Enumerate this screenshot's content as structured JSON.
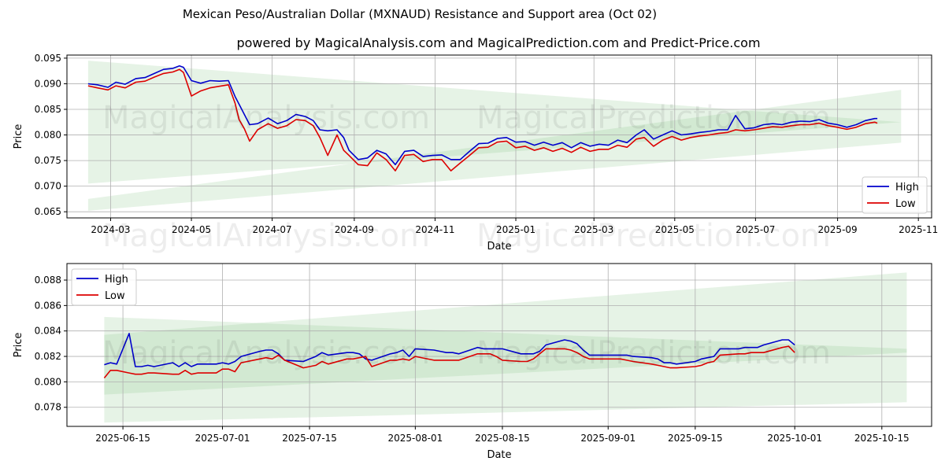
{
  "title": "Mexican Peso/Australian Dollar (MXNAUD) Resistance and Support area (Oct 02)",
  "subtitle": "powered by MagicalAnalysis.com and MagicalPrediction.com and Predict-Price.com",
  "watermarks": [
    "MagicalAnalysis.com",
    "MagicalPrediction.com"
  ],
  "colors": {
    "high": "#0000cc",
    "low": "#dd0000",
    "band": "#8fc98f",
    "grid": "#b0b0b0"
  },
  "chart_data": [
    {
      "type": "line",
      "xlabel": "Date",
      "ylabel": "Price",
      "grid": true,
      "legend": "bottom-right",
      "xlim": [
        "2024-01-28",
        "2025-11-11"
      ],
      "ylim": [
        0.0638,
        0.0956
      ],
      "x_ticks": [
        "2024-03-01",
        "2024-05-01",
        "2024-07-01",
        "2024-09-01",
        "2024-11-01",
        "2025-01-01",
        "2025-03-01",
        "2025-05-01",
        "2025-07-01",
        "2025-09-01",
        "2025-11-01"
      ],
      "x_tick_labels": [
        "2024-03",
        "2024-05",
        "2024-07",
        "2024-09",
        "2024-11",
        "2025-01",
        "2025-03",
        "2025-05",
        "2025-07",
        "2025-09",
        "2025-11"
      ],
      "y_ticks": [
        0.065,
        0.07,
        0.075,
        0.08,
        0.085,
        0.09,
        0.095
      ],
      "y_tick_labels": [
        "0.065",
        "0.070",
        "0.075",
        "0.080",
        "0.085",
        "0.090",
        "0.095"
      ],
      "bands": [
        {
          "name": "resistance-area",
          "x": [
            "2024-02-13",
            "2025-10-19"
          ],
          "upper": [
            0.0945,
            0.0825
          ],
          "lower": [
            0.0705,
            0.0825
          ]
        },
        {
          "name": "support-area",
          "x": [
            "2024-02-13",
            "2025-10-19"
          ],
          "upper": [
            0.0675,
            0.0888
          ],
          "lower": [
            0.0652,
            0.0785
          ]
        }
      ],
      "series": [
        {
          "name": "High",
          "x": [
            "2024-02-13",
            "2024-02-20",
            "2024-02-28",
            "2024-03-05",
            "2024-03-12",
            "2024-03-20",
            "2024-03-27",
            "2024-04-03",
            "2024-04-10",
            "2024-04-17",
            "2024-04-22",
            "2024-04-25",
            "2024-05-01",
            "2024-05-08",
            "2024-05-15",
            "2024-05-22",
            "2024-05-29",
            "2024-06-03",
            "2024-06-06",
            "2024-06-10",
            "2024-06-14",
            "2024-06-20",
            "2024-06-28",
            "2024-07-05",
            "2024-07-12",
            "2024-07-19",
            "2024-07-26",
            "2024-08-01",
            "2024-08-06",
            "2024-08-12",
            "2024-08-19",
            "2024-08-24",
            "2024-08-28",
            "2024-09-04",
            "2024-09-11",
            "2024-09-18",
            "2024-09-25",
            "2024-10-02",
            "2024-10-09",
            "2024-10-16",
            "2024-10-23",
            "2024-10-30",
            "2024-11-06",
            "2024-11-13",
            "2024-11-20",
            "2024-11-27",
            "2024-12-04",
            "2024-12-11",
            "2024-12-18",
            "2024-12-25",
            "2025-01-01",
            "2025-01-08",
            "2025-01-15",
            "2025-01-22",
            "2025-01-29",
            "2025-02-05",
            "2025-02-12",
            "2025-02-19",
            "2025-02-26",
            "2025-03-05",
            "2025-03-12",
            "2025-03-19",
            "2025-03-26",
            "2025-04-02",
            "2025-04-08",
            "2025-04-15",
            "2025-04-22",
            "2025-04-29",
            "2025-05-06",
            "2025-05-13",
            "2025-05-20",
            "2025-05-27",
            "2025-06-03",
            "2025-06-10",
            "2025-06-16",
            "2025-06-23",
            "2025-06-30",
            "2025-07-07",
            "2025-07-14",
            "2025-07-21",
            "2025-07-28",
            "2025-08-04",
            "2025-08-11",
            "2025-08-18",
            "2025-08-25",
            "2025-09-01",
            "2025-09-08",
            "2025-09-15",
            "2025-09-22",
            "2025-09-29",
            "2025-10-01"
          ],
          "values": [
            0.09,
            0.0898,
            0.0893,
            0.0903,
            0.0899,
            0.091,
            0.0912,
            0.092,
            0.0928,
            0.093,
            0.0935,
            0.0932,
            0.0906,
            0.0901,
            0.0906,
            0.0905,
            0.0906,
            0.0875,
            0.086,
            0.084,
            0.082,
            0.0822,
            0.0833,
            0.0822,
            0.0828,
            0.084,
            0.0836,
            0.0828,
            0.081,
            0.0808,
            0.081,
            0.0795,
            0.077,
            0.0752,
            0.0755,
            0.077,
            0.0763,
            0.0742,
            0.0768,
            0.077,
            0.0758,
            0.076,
            0.0761,
            0.0752,
            0.0752,
            0.0768,
            0.0783,
            0.0784,
            0.0793,
            0.0795,
            0.0786,
            0.0787,
            0.078,
            0.0786,
            0.078,
            0.0785,
            0.0775,
            0.0785,
            0.0778,
            0.0782,
            0.078,
            0.079,
            0.0785,
            0.08,
            0.081,
            0.0792,
            0.08,
            0.0808,
            0.08,
            0.0802,
            0.0805,
            0.0807,
            0.081,
            0.081,
            0.0838,
            0.0812,
            0.0814,
            0.082,
            0.0822,
            0.082,
            0.0825,
            0.0827,
            0.0826,
            0.083,
            0.0823,
            0.082,
            0.0815,
            0.082,
            0.0828,
            0.0832,
            0.0832
          ]
        },
        {
          "name": "Low",
          "x": [
            "2024-02-13",
            "2024-02-20",
            "2024-02-28",
            "2024-03-05",
            "2024-03-12",
            "2024-03-20",
            "2024-03-27",
            "2024-04-03",
            "2024-04-10",
            "2024-04-17",
            "2024-04-22",
            "2024-04-25",
            "2024-05-01",
            "2024-05-08",
            "2024-05-15",
            "2024-05-22",
            "2024-05-29",
            "2024-06-03",
            "2024-06-06",
            "2024-06-10",
            "2024-06-14",
            "2024-06-20",
            "2024-06-28",
            "2024-07-05",
            "2024-07-12",
            "2024-07-19",
            "2024-07-26",
            "2024-08-01",
            "2024-08-06",
            "2024-08-12",
            "2024-08-19",
            "2024-08-24",
            "2024-08-28",
            "2024-09-04",
            "2024-09-11",
            "2024-09-18",
            "2024-09-25",
            "2024-10-02",
            "2024-10-09",
            "2024-10-16",
            "2024-10-23",
            "2024-10-30",
            "2024-11-06",
            "2024-11-13",
            "2024-11-20",
            "2024-11-27",
            "2024-12-04",
            "2024-12-11",
            "2024-12-18",
            "2024-12-25",
            "2025-01-01",
            "2025-01-08",
            "2025-01-15",
            "2025-01-22",
            "2025-01-29",
            "2025-02-05",
            "2025-02-12",
            "2025-02-19",
            "2025-02-26",
            "2025-03-05",
            "2025-03-12",
            "2025-03-19",
            "2025-03-26",
            "2025-04-02",
            "2025-04-08",
            "2025-04-15",
            "2025-04-22",
            "2025-04-29",
            "2025-05-06",
            "2025-05-13",
            "2025-05-20",
            "2025-05-27",
            "2025-06-03",
            "2025-06-10",
            "2025-06-16",
            "2025-06-23",
            "2025-06-30",
            "2025-07-07",
            "2025-07-14",
            "2025-07-21",
            "2025-07-28",
            "2025-08-04",
            "2025-08-11",
            "2025-08-18",
            "2025-08-25",
            "2025-09-01",
            "2025-09-08",
            "2025-09-15",
            "2025-09-22",
            "2025-09-29",
            "2025-10-01"
          ],
          "values": [
            0.0896,
            0.0892,
            0.0888,
            0.0896,
            0.0892,
            0.0903,
            0.0905,
            0.0913,
            0.092,
            0.0923,
            0.0928,
            0.0922,
            0.0876,
            0.0886,
            0.0892,
            0.0895,
            0.0898,
            0.0862,
            0.083,
            0.0812,
            0.0788,
            0.081,
            0.0822,
            0.0813,
            0.0818,
            0.083,
            0.0828,
            0.0818,
            0.0795,
            0.076,
            0.08,
            0.077,
            0.076,
            0.0742,
            0.074,
            0.0765,
            0.0752,
            0.073,
            0.076,
            0.0762,
            0.0748,
            0.0752,
            0.0752,
            0.073,
            0.0745,
            0.076,
            0.0775,
            0.0776,
            0.0786,
            0.0788,
            0.0775,
            0.0778,
            0.077,
            0.0775,
            0.0768,
            0.0774,
            0.0766,
            0.0776,
            0.0768,
            0.0772,
            0.0772,
            0.078,
            0.0776,
            0.0792,
            0.0795,
            0.0778,
            0.079,
            0.0797,
            0.079,
            0.0795,
            0.0798,
            0.08,
            0.0803,
            0.0805,
            0.081,
            0.0808,
            0.081,
            0.0813,
            0.0816,
            0.0815,
            0.0818,
            0.082,
            0.082,
            0.0823,
            0.0818,
            0.0815,
            0.0811,
            0.0815,
            0.0822,
            0.0825,
            0.0823
          ]
        }
      ]
    },
    {
      "type": "line",
      "xlabel": "Date",
      "ylabel": "Price",
      "grid": true,
      "legend": "top-left",
      "xlim": [
        "2025-06-06",
        "2025-10-23"
      ],
      "ylim": [
        0.0765,
        0.0893
      ],
      "x_ticks": [
        "2025-06-15",
        "2025-07-01",
        "2025-07-15",
        "2025-08-01",
        "2025-08-15",
        "2025-09-01",
        "2025-09-15",
        "2025-10-01",
        "2025-10-15"
      ],
      "x_tick_labels": [
        "2025-06-15",
        "2025-07-01",
        "2025-07-15",
        "2025-08-01",
        "2025-08-15",
        "2025-09-01",
        "2025-09-15",
        "2025-10-01",
        "2025-10-15"
      ],
      "y_ticks": [
        0.078,
        0.08,
        0.082,
        0.084,
        0.086,
        0.088
      ],
      "y_tick_labels": [
        "0.078",
        "0.080",
        "0.082",
        "0.084",
        "0.086",
        "0.088"
      ],
      "bands": [
        {
          "name": "resistance-area",
          "x": [
            "2025-06-12",
            "2025-10-19"
          ],
          "upper": [
            0.0851,
            0.0826
          ],
          "lower": [
            0.0768,
            0.0784
          ]
        },
        {
          "name": "support-area",
          "x": [
            "2025-06-12",
            "2025-10-19"
          ],
          "upper": [
            0.0837,
            0.0886
          ],
          "lower": [
            0.079,
            0.0823
          ]
        }
      ],
      "series": [
        {
          "name": "High",
          "x": [
            "2025-06-12",
            "2025-06-13",
            "2025-06-14",
            "2025-06-16",
            "2025-06-17",
            "2025-06-18",
            "2025-06-19",
            "2025-06-20",
            "2025-06-23",
            "2025-06-24",
            "2025-06-25",
            "2025-06-26",
            "2025-06-27",
            "2025-06-30",
            "2025-07-01",
            "2025-07-02",
            "2025-07-03",
            "2025-07-04",
            "2025-07-07",
            "2025-07-08",
            "2025-07-09",
            "2025-07-10",
            "2025-07-11",
            "2025-07-14",
            "2025-07-15",
            "2025-07-16",
            "2025-07-17",
            "2025-07-18",
            "2025-07-21",
            "2025-07-22",
            "2025-07-23",
            "2025-07-24",
            "2025-07-25",
            "2025-07-28",
            "2025-07-29",
            "2025-07-30",
            "2025-07-31",
            "2025-08-01",
            "2025-08-04",
            "2025-08-05",
            "2025-08-06",
            "2025-08-07",
            "2025-08-08",
            "2025-08-11",
            "2025-08-12",
            "2025-08-13",
            "2025-08-14",
            "2025-08-15",
            "2025-08-18",
            "2025-08-19",
            "2025-08-20",
            "2025-08-21",
            "2025-08-22",
            "2025-08-25",
            "2025-08-26",
            "2025-08-27",
            "2025-08-28",
            "2025-08-29",
            "2025-09-01",
            "2025-09-02",
            "2025-09-03",
            "2025-09-04",
            "2025-09-05",
            "2025-09-08",
            "2025-09-09",
            "2025-09-10",
            "2025-09-11",
            "2025-09-12",
            "2025-09-15",
            "2025-09-16",
            "2025-09-17",
            "2025-09-18",
            "2025-09-19",
            "2025-09-22",
            "2025-09-23",
            "2025-09-24",
            "2025-09-25",
            "2025-09-26",
            "2025-09-29",
            "2025-09-30",
            "2025-10-01"
          ],
          "values": [
            0.08135,
            0.0815,
            0.0814,
            0.0838,
            0.0812,
            0.0812,
            0.0813,
            0.0812,
            0.0815,
            0.0812,
            0.0815,
            0.0812,
            0.0814,
            0.0814,
            0.0815,
            0.0814,
            0.0816,
            0.082,
            0.0824,
            0.0825,
            0.0825,
            0.0822,
            0.0817,
            0.0816,
            0.0818,
            0.082,
            0.0823,
            0.0821,
            0.0823,
            0.0823,
            0.0822,
            0.0818,
            0.0817,
            0.0822,
            0.0823,
            0.0825,
            0.082,
            0.0826,
            0.0825,
            0.0824,
            0.0823,
            0.0823,
            0.0822,
            0.0827,
            0.0826,
            0.0826,
            0.0826,
            0.0826,
            0.0822,
            0.0822,
            0.0822,
            0.0824,
            0.0829,
            0.0833,
            0.0832,
            0.083,
            0.0825,
            0.0821,
            0.0821,
            0.0821,
            0.0821,
            0.0821,
            0.082,
            0.0819,
            0.0818,
            0.0815,
            0.0815,
            0.0814,
            0.0816,
            0.0818,
            0.0819,
            0.082,
            0.0826,
            0.0826,
            0.0827,
            0.0827,
            0.0827,
            0.0829,
            0.0833,
            0.0833,
            0.0829
          ]
        },
        {
          "name": "Low",
          "x": [
            "2025-06-12",
            "2025-06-13",
            "2025-06-14",
            "2025-06-16",
            "2025-06-17",
            "2025-06-18",
            "2025-06-19",
            "2025-06-20",
            "2025-06-23",
            "2025-06-24",
            "2025-06-25",
            "2025-06-26",
            "2025-06-27",
            "2025-06-30",
            "2025-07-01",
            "2025-07-02",
            "2025-07-03",
            "2025-07-04",
            "2025-07-07",
            "2025-07-08",
            "2025-07-09",
            "2025-07-10",
            "2025-07-11",
            "2025-07-14",
            "2025-07-15",
            "2025-07-16",
            "2025-07-17",
            "2025-07-18",
            "2025-07-21",
            "2025-07-22",
            "2025-07-23",
            "2025-07-24",
            "2025-07-25",
            "2025-07-28",
            "2025-07-29",
            "2025-07-30",
            "2025-07-31",
            "2025-08-01",
            "2025-08-04",
            "2025-08-05",
            "2025-08-06",
            "2025-08-07",
            "2025-08-08",
            "2025-08-11",
            "2025-08-12",
            "2025-08-13",
            "2025-08-14",
            "2025-08-15",
            "2025-08-18",
            "2025-08-19",
            "2025-08-20",
            "2025-08-21",
            "2025-08-22",
            "2025-08-25",
            "2025-08-26",
            "2025-08-27",
            "2025-08-28",
            "2025-08-29",
            "2025-09-01",
            "2025-09-02",
            "2025-09-03",
            "2025-09-04",
            "2025-09-05",
            "2025-09-08",
            "2025-09-09",
            "2025-09-10",
            "2025-09-11",
            "2025-09-12",
            "2025-09-15",
            "2025-09-16",
            "2025-09-17",
            "2025-09-18",
            "2025-09-19",
            "2025-09-22",
            "2025-09-23",
            "2025-09-24",
            "2025-09-25",
            "2025-09-26",
            "2025-09-29",
            "2025-09-30",
            "2025-10-01"
          ],
          "values": [
            0.0803,
            0.0809,
            0.0809,
            0.0807,
            0.0806,
            0.0806,
            0.0807,
            0.0807,
            0.0806,
            0.0806,
            0.0809,
            0.0806,
            0.0807,
            0.0807,
            0.081,
            0.081,
            0.0808,
            0.0815,
            0.0818,
            0.0819,
            0.0818,
            0.0821,
            0.0817,
            0.0811,
            0.0812,
            0.0813,
            0.0816,
            0.0814,
            0.0818,
            0.0818,
            0.0819,
            0.082,
            0.0812,
            0.0817,
            0.0817,
            0.0818,
            0.0817,
            0.082,
            0.0817,
            0.0817,
            0.0817,
            0.0817,
            0.0817,
            0.0822,
            0.0822,
            0.0822,
            0.082,
            0.0817,
            0.0816,
            0.0816,
            0.0818,
            0.0822,
            0.0826,
            0.0826,
            0.0825,
            0.0823,
            0.082,
            0.0818,
            0.0818,
            0.0818,
            0.0818,
            0.0817,
            0.0816,
            0.0814,
            0.0813,
            0.0812,
            0.0811,
            0.0811,
            0.0812,
            0.0813,
            0.0815,
            0.0816,
            0.0821,
            0.0822,
            0.0822,
            0.0823,
            0.0823,
            0.0823,
            0.0827,
            0.0828,
            0.0823
          ]
        }
      ]
    }
  ]
}
